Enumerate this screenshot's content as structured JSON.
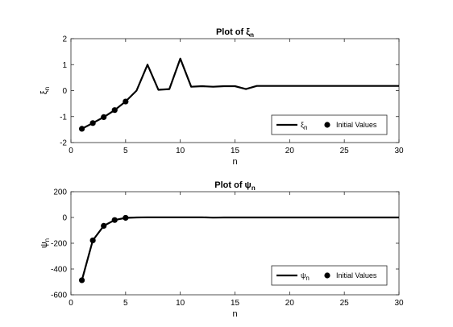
{
  "chart_data": [
    {
      "type": "line",
      "title": "Plot of ξ",
      "title_subscript": "n",
      "xlabel": "n",
      "ylabel": "ξ",
      "ylabel_subscript": "n",
      "xlim": [
        0,
        30
      ],
      "ylim": [
        -2,
        2
      ],
      "xticks": [
        0,
        5,
        10,
        15,
        20,
        25,
        30
      ],
      "yticks": [
        -2,
        -1,
        0,
        1,
        2
      ],
      "grid": false,
      "legend_position": "bottom-right",
      "series": [
        {
          "name": "ξ",
          "name_subscript": "n",
          "style": "line",
          "x": [
            1,
            2,
            3,
            4,
            5,
            6,
            7,
            8,
            9,
            10,
            11,
            12,
            13,
            14,
            15,
            16,
            17,
            18,
            19,
            20,
            21,
            22,
            23,
            24,
            25,
            26,
            27,
            28,
            29,
            30
          ],
          "values": [
            -1.47,
            -1.25,
            -1.02,
            -0.75,
            -0.42,
            0.0,
            1.0,
            0.03,
            0.06,
            1.23,
            0.15,
            0.17,
            0.15,
            0.17,
            0.17,
            0.06,
            0.18,
            0.18,
            0.18,
            0.18,
            0.18,
            0.18,
            0.18,
            0.18,
            0.18,
            0.18,
            0.18,
            0.18,
            0.18,
            0.18
          ]
        },
        {
          "name": "Initial Values",
          "style": "marker",
          "x": [
            1,
            2,
            3,
            4,
            5
          ],
          "values": [
            -1.47,
            -1.25,
            -1.02,
            -0.75,
            -0.42
          ]
        }
      ]
    },
    {
      "type": "line",
      "title": "Plot of ψ",
      "title_subscript": "n",
      "xlabel": "n",
      "ylabel": "ψ",
      "ylabel_subscript": "n",
      "xlim": [
        0,
        30
      ],
      "ylim": [
        -600,
        200
      ],
      "xticks": [
        0,
        5,
        10,
        15,
        20,
        25,
        30
      ],
      "yticks": [
        -600,
        -400,
        -200,
        0,
        200
      ],
      "grid": false,
      "legend_position": "bottom-right",
      "series": [
        {
          "name": "ψ",
          "name_subscript": "n",
          "style": "line",
          "x": [
            1,
            2,
            3,
            4,
            5,
            6,
            7,
            8,
            9,
            10,
            11,
            12,
            13,
            14,
            15,
            16,
            17,
            18,
            19,
            20,
            21,
            22,
            23,
            24,
            25,
            26,
            27,
            28,
            29,
            30
          ],
          "values": [
            -487,
            -178,
            -65,
            -20,
            -3,
            0,
            1,
            1,
            1,
            1,
            1,
            1,
            -1,
            0,
            0,
            0,
            0,
            0,
            0,
            0,
            0,
            0,
            0,
            0,
            0,
            0,
            0,
            0,
            0,
            0
          ]
        },
        {
          "name": "Initial Values",
          "style": "marker",
          "x": [
            1,
            2,
            3,
            4,
            5
          ],
          "values": [
            -487,
            -178,
            -65,
            -20,
            -3
          ]
        }
      ]
    }
  ]
}
